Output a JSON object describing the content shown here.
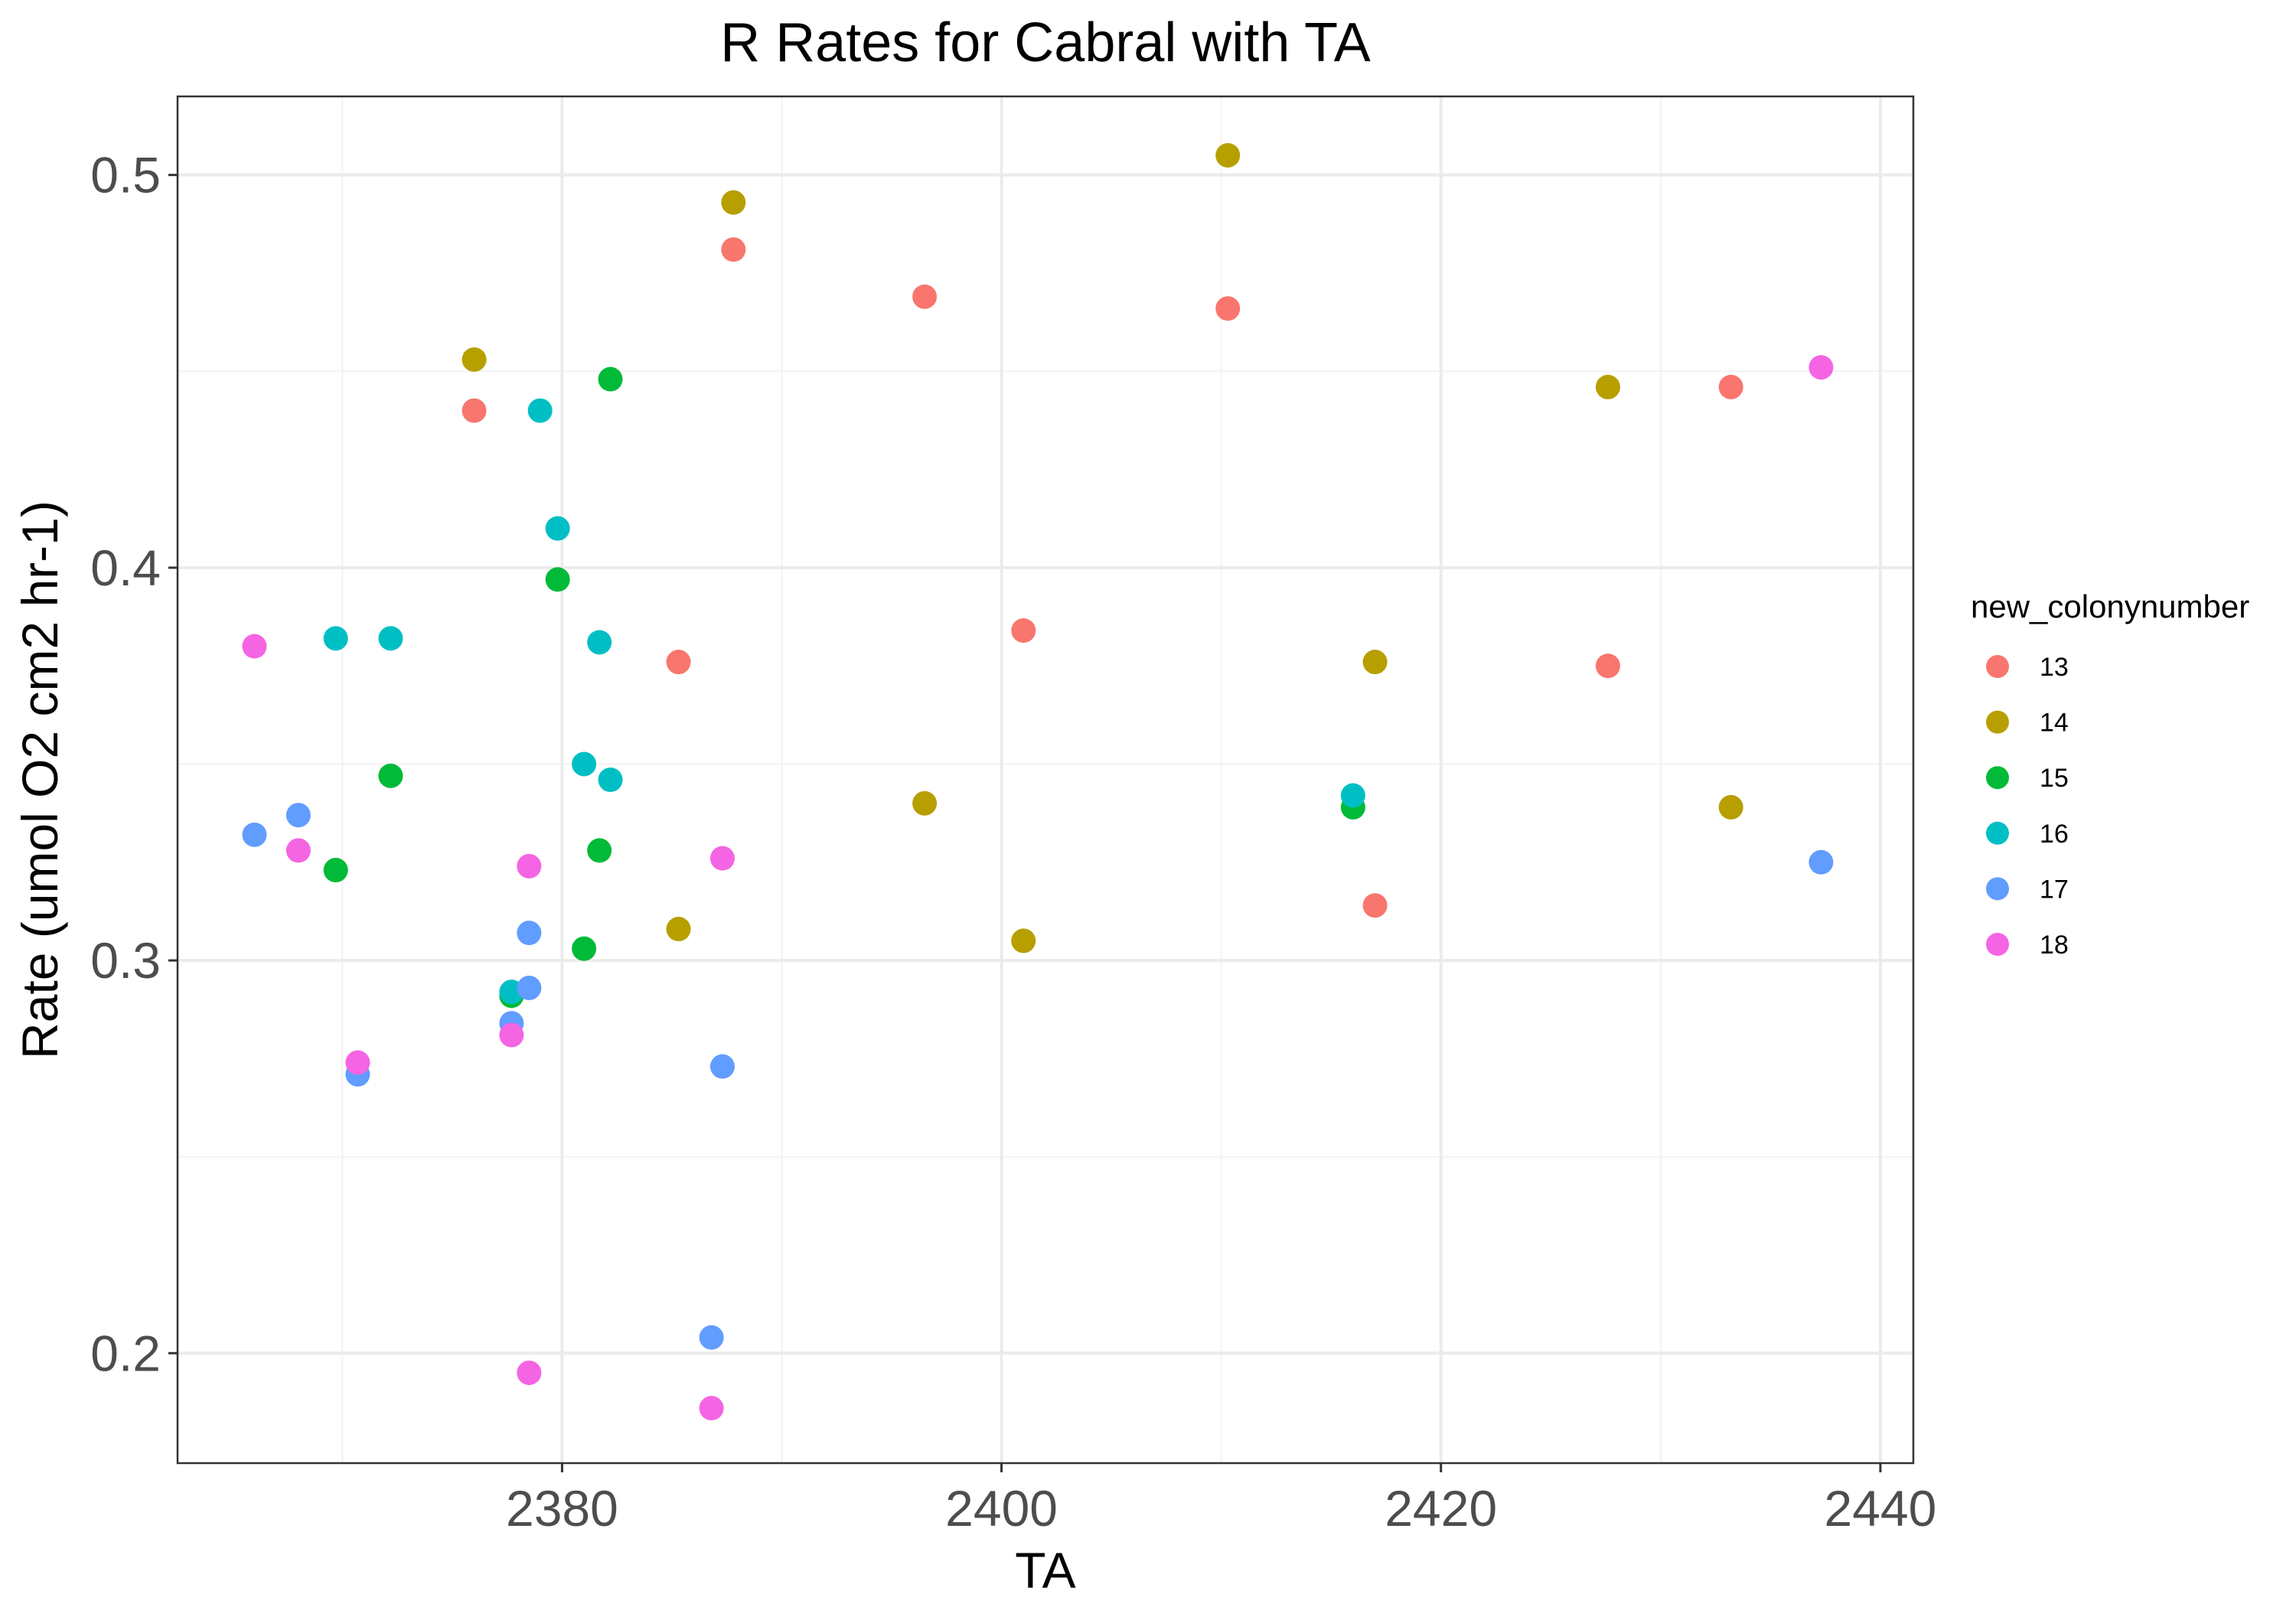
{
  "chart_data": {
    "type": "scatter",
    "title": "R Rates for Cabral with TA",
    "xlabel": "TA",
    "ylabel": "Rate (umol O2 cm2 hr-1)",
    "xlim": [
      2362.5,
      2441.5
    ],
    "ylim": [
      0.172,
      0.52
    ],
    "x_ticks": [
      2380,
      2400,
      2420,
      2440
    ],
    "x_tick_labels": [
      "2380",
      "2400",
      "2420",
      "2440"
    ],
    "x_minor_ticks": [
      2370,
      2390,
      2410,
      2430
    ],
    "y_ticks": [
      0.2,
      0.3,
      0.4,
      0.5
    ],
    "y_tick_labels": [
      "0.2",
      "0.3",
      "0.4",
      "0.5"
    ],
    "y_minor_ticks": [
      0.25,
      0.35,
      0.45
    ],
    "grid": true,
    "legend": {
      "title": "new_colonynumber",
      "position": "right"
    },
    "series": [
      {
        "name": "13",
        "color": "#F8766D",
        "points": [
          [
            2376,
            0.44
          ],
          [
            2387.8,
            0.481
          ],
          [
            2396.5,
            0.469
          ],
          [
            2410.3,
            0.466
          ],
          [
            2385.3,
            0.376
          ],
          [
            2401.0,
            0.384
          ],
          [
            2417.0,
            0.314
          ],
          [
            2427.6,
            0.375
          ],
          [
            2433.2,
            0.446
          ]
        ]
      },
      {
        "name": "14",
        "color": "#B79F00",
        "points": [
          [
            2376,
            0.453
          ],
          [
            2387.8,
            0.493
          ],
          [
            2410.3,
            0.505
          ],
          [
            2427.6,
            0.446
          ],
          [
            2417.0,
            0.376
          ],
          [
            2396.5,
            0.34
          ],
          [
            2401.0,
            0.305
          ],
          [
            2385.3,
            0.308
          ],
          [
            2433.2,
            0.339
          ]
        ]
      },
      {
        "name": "15",
        "color": "#00BA38",
        "points": [
          [
            2382.2,
            0.448
          ],
          [
            2379.8,
            0.397
          ],
          [
            2372.2,
            0.347
          ],
          [
            2369.7,
            0.323
          ],
          [
            2381.7,
            0.328
          ],
          [
            2381.0,
            0.303
          ],
          [
            2377.7,
            0.291
          ],
          [
            2416.0,
            0.339
          ]
        ]
      },
      {
        "name": "16",
        "color": "#00BFC4",
        "points": [
          [
            2379.0,
            0.44
          ],
          [
            2379.8,
            0.41
          ],
          [
            2369.7,
            0.382
          ],
          [
            2372.2,
            0.382
          ],
          [
            2381.7,
            0.381
          ],
          [
            2381.0,
            0.35
          ],
          [
            2382.2,
            0.346
          ],
          [
            2377.7,
            0.292
          ],
          [
            2416.0,
            0.342
          ]
        ]
      },
      {
        "name": "17",
        "color": "#619CFF",
        "points": [
          [
            2366.0,
            0.332
          ],
          [
            2368.0,
            0.337
          ],
          [
            2378.5,
            0.307
          ],
          [
            2378.5,
            0.293
          ],
          [
            2377.7,
            0.284
          ],
          [
            2370.7,
            0.271
          ],
          [
            2387.3,
            0.273
          ],
          [
            2386.8,
            0.204
          ],
          [
            2437.3,
            0.325
          ]
        ]
      },
      {
        "name": "18",
        "color": "#F564E3",
        "points": [
          [
            2366.0,
            0.38
          ],
          [
            2368.0,
            0.328
          ],
          [
            2378.5,
            0.324
          ],
          [
            2387.3,
            0.326
          ],
          [
            2377.7,
            0.281
          ],
          [
            2370.7,
            0.274
          ],
          [
            2378.5,
            0.195
          ],
          [
            2386.8,
            0.186
          ],
          [
            2437.3,
            0.451
          ]
        ]
      }
    ]
  }
}
